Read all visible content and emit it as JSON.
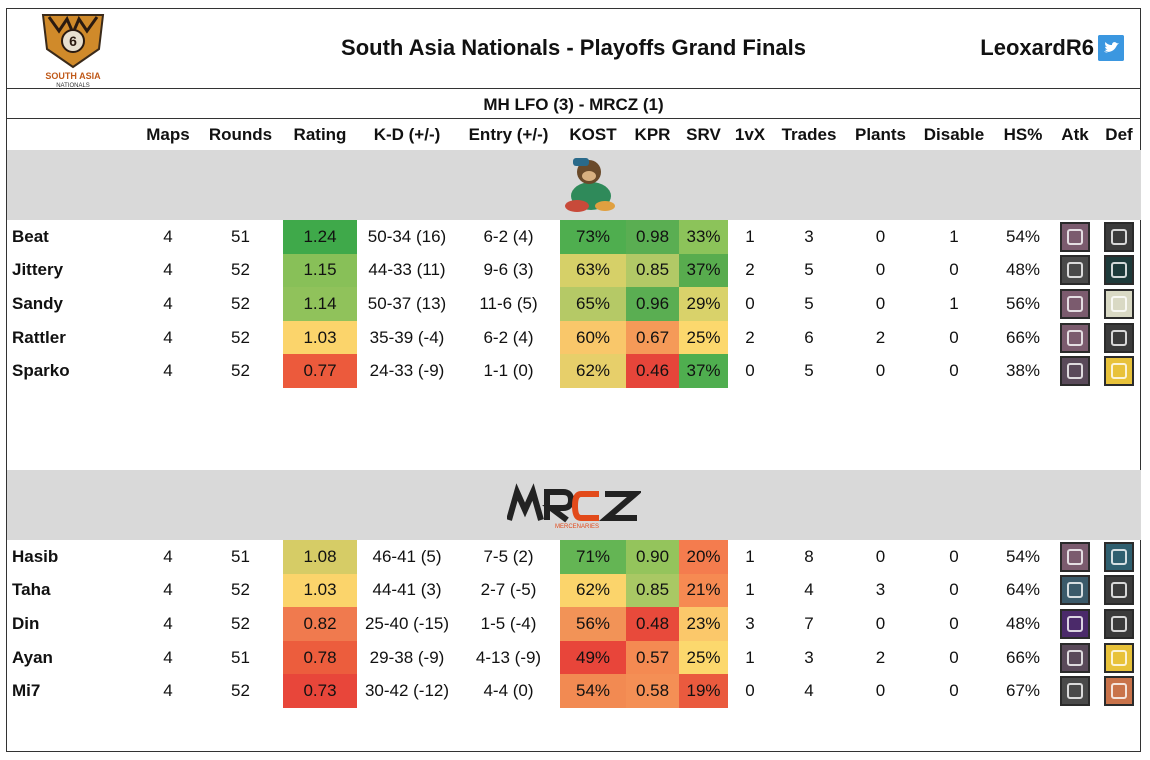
{
  "header": {
    "logo_text": "SOUTH ASIA NATIONALS",
    "title": "South Asia Nationals - Playoffs Grand Finals",
    "handle": "LeoxardR6",
    "twitter_icon": "twitter-bird-icon"
  },
  "match": {
    "result": "MH LFO (3) - MRCZ (1)"
  },
  "columns": [
    "Maps",
    "Rounds",
    "Rating",
    "K-D (+/-)",
    "Entry (+/-)",
    "KOST",
    "KPR",
    "SRV",
    "1vX",
    "Trades",
    "Plants",
    "Disable",
    "HS%",
    "Atk",
    "Def"
  ],
  "teams": [
    {
      "logo_icon": "monkey-mascot-logo-icon",
      "players": [
        {
          "name": "Beat",
          "maps": "4",
          "rounds": "51",
          "rating": "1.24",
          "kd": "50-34 (16)",
          "entry": "6-2 (4)",
          "kost": "73%",
          "kpr": "0.98",
          "srv": "33%",
          "onevx": "1",
          "trades": "3",
          "plants": "0",
          "disable": "1",
          "hs": "54%",
          "colors": {
            "rating": "#3fa94a",
            "kost": "#4fae4f",
            "kpr": "#5aae52",
            "srv": "#8cc35a"
          },
          "atk_icon": "operator-hammer-icon",
          "def_icon": "operator-skull-icon",
          "atk_color": "#7b5b6e",
          "def_color": "#3b3b3b"
        },
        {
          "name": "Jittery",
          "maps": "4",
          "rounds": "52",
          "rating": "1.15",
          "kd": "44-33 (11)",
          "entry": "9-6 (3)",
          "kost": "63%",
          "kpr": "0.85",
          "srv": "37%",
          "onevx": "2",
          "trades": "5",
          "plants": "0",
          "disable": "0",
          "hs": "48%",
          "colors": {
            "rating": "#88c058",
            "kost": "#d6d068",
            "kpr": "#b2c966",
            "srv": "#58ac4e"
          },
          "atk_icon": "operator-hood-icon",
          "def_icon": "operator-umbrella-icon",
          "atk_color": "#4a4a4a",
          "def_color": "#1e3a3a"
        },
        {
          "name": "Sandy",
          "maps": "4",
          "rounds": "52",
          "rating": "1.14",
          "kd": "50-37 (13)",
          "entry": "11-6 (5)",
          "kost": "65%",
          "kpr": "0.96",
          "srv": "29%",
          "onevx": "0",
          "trades": "5",
          "plants": "0",
          "disable": "1",
          "hs": "56%",
          "colors": {
            "rating": "#90c25b",
            "kost": "#b5c966",
            "kpr": "#5aae52",
            "srv": "#d9d26a"
          },
          "atk_icon": "operator-hammer-icon",
          "def_icon": "operator-spider-icon",
          "atk_color": "#7b5b6e",
          "def_color": "#d9d9c4"
        },
        {
          "name": "Rattler",
          "maps": "4",
          "rounds": "52",
          "rating": "1.03",
          "kd": "35-39 (-4)",
          "entry": "6-2 (4)",
          "kost": "60%",
          "kpr": "0.67",
          "srv": "25%",
          "onevx": "2",
          "trades": "6",
          "plants": "2",
          "disable": "0",
          "hs": "66%",
          "colors": {
            "rating": "#fbd46b",
            "kost": "#f9c76a",
            "kpr": "#f59a58",
            "srv": "#fcd86d"
          },
          "atk_icon": "operator-hammer-icon",
          "def_icon": "operator-skull-icon",
          "atk_color": "#7b5b6e",
          "def_color": "#3b3b3b"
        },
        {
          "name": "Sparko",
          "maps": "4",
          "rounds": "52",
          "rating": "0.77",
          "kd": "24-33 (-9)",
          "entry": "1-1 (0)",
          "kost": "62%",
          "kpr": "0.46",
          "srv": "37%",
          "onevx": "0",
          "trades": "5",
          "plants": "0",
          "disable": "0",
          "hs": "38%",
          "colors": {
            "rating": "#ec5a3c",
            "kost": "#e7cf6a",
            "kpr": "#e6453a",
            "srv": "#4fae4f"
          },
          "atk_icon": "operator-gear-icon",
          "def_icon": "operator-web-icon",
          "atk_color": "#5a4a5a",
          "def_color": "#e8c23a"
        }
      ]
    },
    {
      "logo_icon": "mrcz-logo-icon",
      "logo_text": "MRCZ",
      "players": [
        {
          "name": "Hasib",
          "maps": "4",
          "rounds": "51",
          "rating": "1.08",
          "kd": "46-41 (5)",
          "entry": "7-5 (2)",
          "kost": "71%",
          "kpr": "0.90",
          "srv": "20%",
          "onevx": "1",
          "trades": "8",
          "plants": "0",
          "disable": "0",
          "hs": "54%",
          "colors": {
            "rating": "#d6cc66",
            "kost": "#64b554",
            "kpr": "#94c45c",
            "srv": "#f47c4e"
          },
          "atk_icon": "operator-hammer-icon",
          "def_icon": "operator-shield-icon",
          "atk_color": "#7b5b6e",
          "def_color": "#2f5f6f"
        },
        {
          "name": "Taha",
          "maps": "4",
          "rounds": "52",
          "rating": "1.03",
          "kd": "44-41 (3)",
          "entry": "2-7 (-5)",
          "kost": "62%",
          "kpr": "0.85",
          "srv": "21%",
          "onevx": "1",
          "trades": "4",
          "plants": "3",
          "disable": "0",
          "hs": "64%",
          "colors": {
            "rating": "#fbd46b",
            "kost": "#fbd46b",
            "kpr": "#a9c864",
            "srv": "#f68a52"
          },
          "atk_icon": "operator-wing-icon",
          "def_icon": "operator-skull-icon",
          "atk_color": "#3b5a6a",
          "def_color": "#3b3b3b"
        },
        {
          "name": "Din",
          "maps": "4",
          "rounds": "52",
          "rating": "0.82",
          "kd": "25-40 (-15)",
          "entry": "1-5 (-4)",
          "kost": "56%",
          "kpr": "0.48",
          "srv": "23%",
          "onevx": "3",
          "trades": "7",
          "plants": "0",
          "disable": "0",
          "hs": "48%",
          "colors": {
            "rating": "#f07a4e",
            "kost": "#f29357",
            "kpr": "#e84a3b",
            "srv": "#fbc86a"
          },
          "atk_icon": "operator-eye-icon",
          "def_icon": "operator-skull-icon",
          "atk_color": "#4b2a6a",
          "def_color": "#3b3b3b"
        },
        {
          "name": "Ayan",
          "maps": "4",
          "rounds": "51",
          "rating": "0.78",
          "kd": "29-38 (-9)",
          "entry": "4-13 (-9)",
          "kost": "49%",
          "kpr": "0.57",
          "srv": "25%",
          "onevx": "1",
          "trades": "3",
          "plants": "2",
          "disable": "0",
          "hs": "66%",
          "colors": {
            "rating": "#ec5d3d",
            "kost": "#e8453a",
            "kpr": "#f48a52",
            "srv": "#fcd86d"
          },
          "atk_icon": "operator-gear-icon",
          "def_icon": "operator-web-icon",
          "atk_color": "#5a4a5a",
          "def_color": "#e8c23a"
        },
        {
          "name": "Mi7",
          "maps": "4",
          "rounds": "52",
          "rating": "0.73",
          "kd": "30-42 (-12)",
          "entry": "4-4 (0)",
          "kost": "54%",
          "kpr": "0.58",
          "srv": "19%",
          "onevx": "0",
          "trades": "4",
          "plants": "0",
          "disable": "0",
          "hs": "67%",
          "colors": {
            "rating": "#e8463a",
            "kost": "#f28a52",
            "kpr": "#f48f55",
            "srv": "#ea5a3e"
          },
          "atk_icon": "operator-cluster-icon",
          "def_icon": "operator-wall-icon",
          "atk_color": "#4a4a4a",
          "def_color": "#c9734a"
        }
      ]
    }
  ]
}
